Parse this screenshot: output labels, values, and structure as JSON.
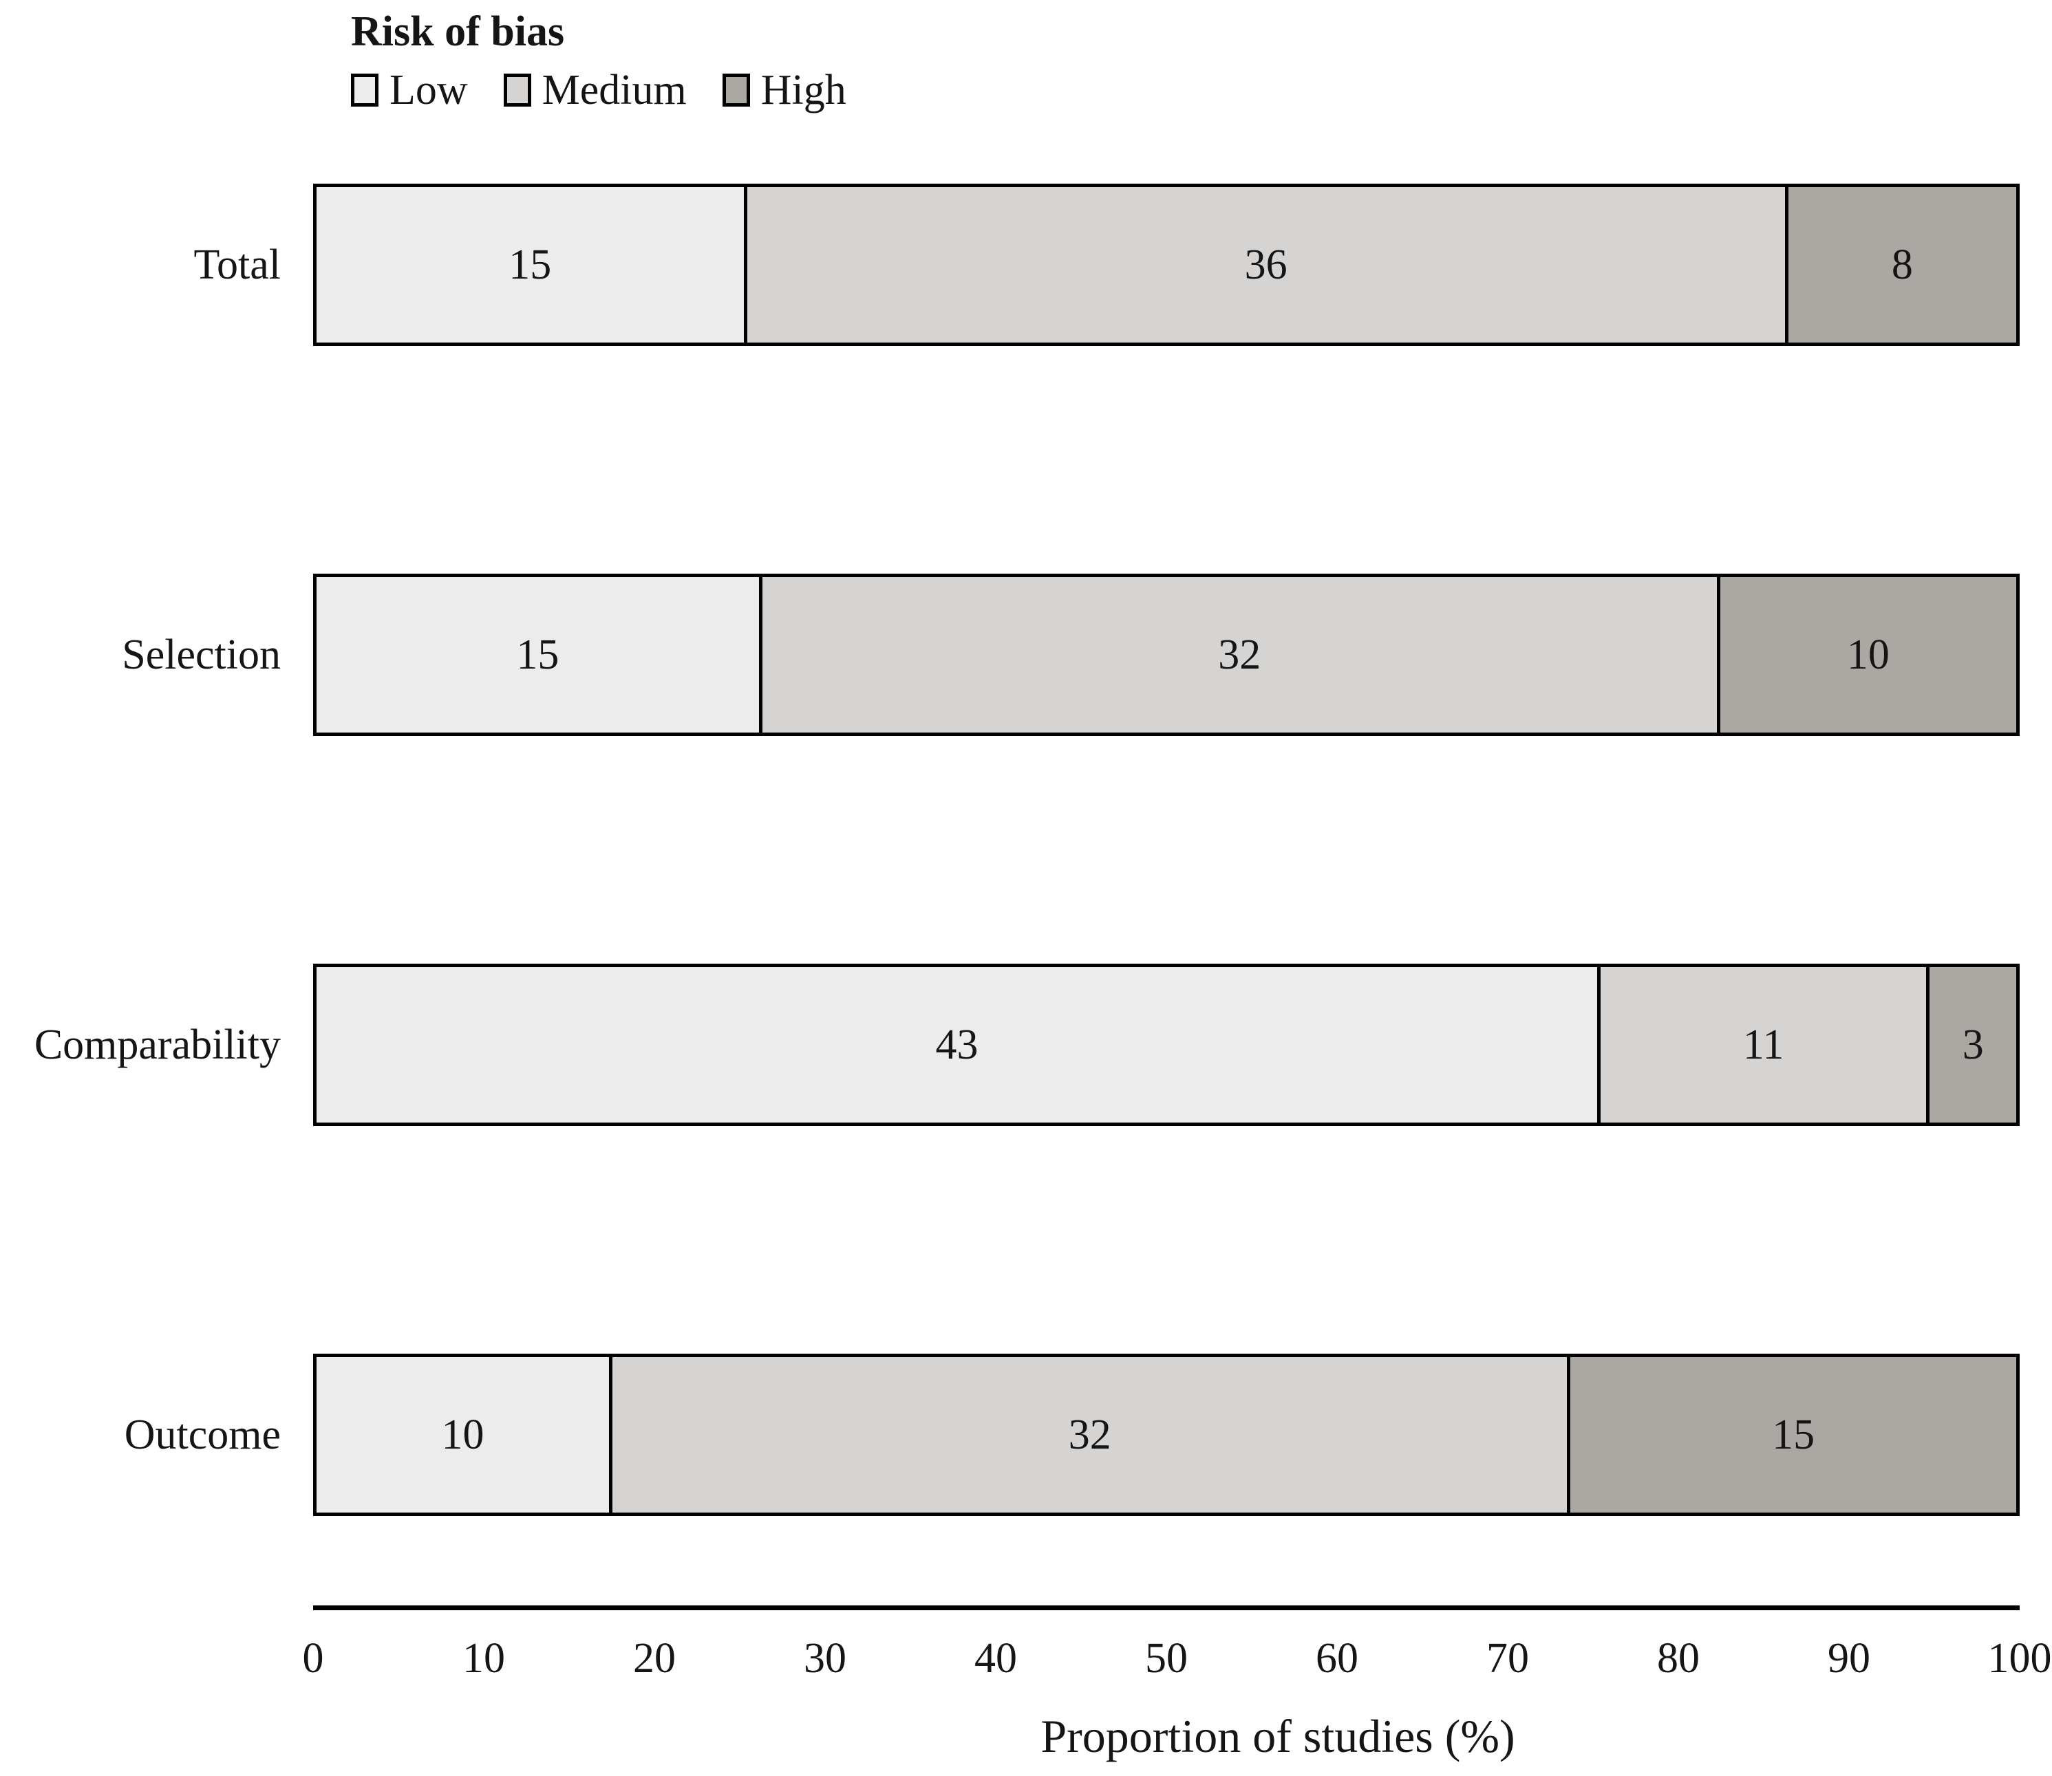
{
  "legend": {
    "title": "Risk of bias",
    "items": [
      {
        "label": "Low",
        "color": "#ececec"
      },
      {
        "label": "Medium",
        "color": "#d6d4d2"
      },
      {
        "label": "High",
        "color": "#aba8a4"
      }
    ]
  },
  "chart_data": {
    "type": "bar",
    "orientation": "horizontal",
    "stacked": true,
    "stack_mode": "percent-of-row-total",
    "title": "Risk of bias",
    "categories": [
      "Total",
      "Selection",
      "Comparability",
      "Outcome"
    ],
    "series": [
      {
        "name": "Low",
        "color": "#ececec",
        "values": [
          15,
          15,
          43,
          10
        ]
      },
      {
        "name": "Medium",
        "color": "#d6d4d2",
        "values": [
          36,
          32,
          11,
          32
        ]
      },
      {
        "name": "High",
        "color": "#aba8a4",
        "values": [
          8,
          10,
          3,
          15
        ]
      }
    ],
    "row_totals": [
      59,
      57,
      57,
      57
    ],
    "xlabel": "Proportion of studies (%)",
    "x_ticks": [
      "0",
      "10",
      "20",
      "30",
      "40",
      "50",
      "60",
      "70",
      "80",
      "90",
      "100"
    ],
    "xlim": [
      0,
      100
    ],
    "grid": false,
    "legend_position": "top-left",
    "bar_border_color": "#000000"
  }
}
